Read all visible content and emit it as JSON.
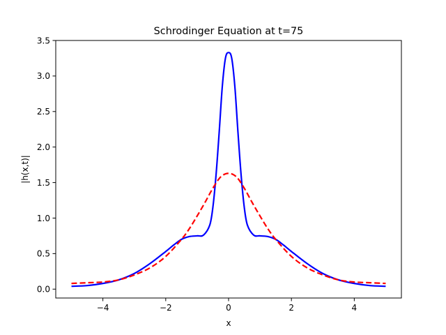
{
  "chart_data": {
    "type": "line",
    "title": "Schrodinger Equation at t=75",
    "xlabel": "x",
    "ylabel": "|h(x,t)|",
    "xlim": [
      -5.5,
      5.5
    ],
    "ylim": [
      -0.125,
      3.5
    ],
    "xticks": [
      -4,
      -2,
      0,
      2,
      4
    ],
    "xtick_labels": [
      "−4",
      "−2",
      "0",
      "2",
      "4"
    ],
    "yticks": [
      0.0,
      0.5,
      1.0,
      1.5,
      2.0,
      2.5,
      3.0,
      3.5
    ],
    "ytick_labels": [
      "0.0",
      "0.5",
      "1.0",
      "1.5",
      "2.0",
      "2.5",
      "3.0",
      "3.5"
    ],
    "grid": false,
    "legend": "none",
    "series": [
      {
        "style": "solid",
        "color": "#0000ff",
        "x": [
          -5.0,
          -4.5,
          -4.0,
          -3.5,
          -3.0,
          -2.5,
          -2.0,
          -1.75,
          -1.5,
          -1.25,
          -1.0,
          -0.8,
          -0.6,
          -0.5,
          -0.4,
          -0.3,
          -0.2,
          -0.1,
          0.0,
          0.1,
          0.2,
          0.3,
          0.4,
          0.5,
          0.6,
          0.8,
          1.0,
          1.25,
          1.5,
          1.75,
          2.0,
          2.5,
          3.0,
          3.5,
          4.0,
          4.5,
          5.0
        ],
        "y": [
          0.04,
          0.05,
          0.08,
          0.13,
          0.22,
          0.36,
          0.53,
          0.62,
          0.7,
          0.74,
          0.75,
          0.76,
          0.9,
          1.15,
          1.6,
          2.2,
          2.85,
          3.25,
          3.33,
          3.25,
          2.85,
          2.2,
          1.6,
          1.15,
          0.9,
          0.76,
          0.75,
          0.74,
          0.7,
          0.62,
          0.53,
          0.36,
          0.22,
          0.13,
          0.08,
          0.05,
          0.04
        ]
      },
      {
        "style": "dashed",
        "color": "#ff0000",
        "x": [
          -5.0,
          -4.5,
          -4.0,
          -3.5,
          -3.0,
          -2.5,
          -2.0,
          -1.5,
          -1.25,
          -1.0,
          -0.75,
          -0.5,
          -0.25,
          0.0,
          0.25,
          0.5,
          0.75,
          1.0,
          1.25,
          1.5,
          2.0,
          2.5,
          3.0,
          3.5,
          4.0,
          4.5,
          5.0
        ],
        "y": [
          0.08,
          0.09,
          0.1,
          0.13,
          0.2,
          0.3,
          0.46,
          0.7,
          0.85,
          1.03,
          1.22,
          1.42,
          1.58,
          1.63,
          1.58,
          1.42,
          1.22,
          1.03,
          0.85,
          0.7,
          0.46,
          0.3,
          0.2,
          0.13,
          0.1,
          0.09,
          0.08
        ]
      }
    ]
  }
}
